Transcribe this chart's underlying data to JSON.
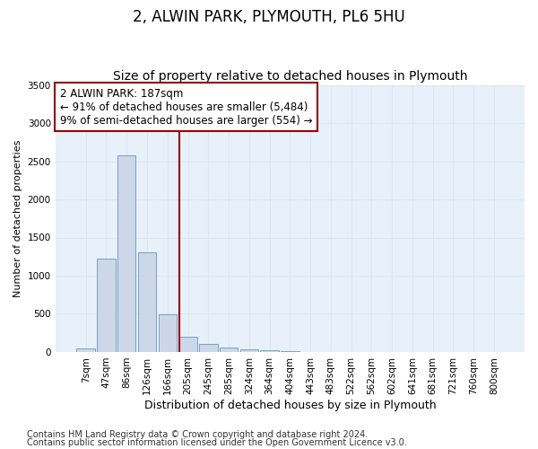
{
  "title1": "2, ALWIN PARK, PLYMOUTH, PL6 5HU",
  "title2": "Size of property relative to detached houses in Plymouth",
  "xlabel": "Distribution of detached houses by size in Plymouth",
  "ylabel": "Number of detached properties",
  "categories": [
    "7sqm",
    "47sqm",
    "86sqm",
    "126sqm",
    "166sqm",
    "205sqm",
    "245sqm",
    "285sqm",
    "324sqm",
    "364sqm",
    "404sqm",
    "443sqm",
    "483sqm",
    "522sqm",
    "562sqm",
    "602sqm",
    "641sqm",
    "681sqm",
    "721sqm",
    "760sqm",
    "800sqm"
  ],
  "values": [
    50,
    1220,
    2580,
    1300,
    490,
    195,
    110,
    55,
    35,
    18,
    10,
    5,
    3,
    2,
    1,
    1,
    0,
    0,
    0,
    0,
    0
  ],
  "bar_color": "#ccd8e8",
  "bar_edge_color": "#6a96bc",
  "vline_x": 4.58,
  "vline_color": "#990000",
  "annotation_line1": "2 ALWIN PARK: 187sqm",
  "annotation_line2": "← 91% of detached houses are smaller (5,484)",
  "annotation_line3": "9% of semi-detached houses are larger (554) →",
  "annotation_box_color": "#ffffff",
  "annotation_box_edge": "#990000",
  "ylim": [
    0,
    3500
  ],
  "yticks": [
    0,
    500,
    1000,
    1500,
    2000,
    2500,
    3000,
    3500
  ],
  "grid_color": "#dce8f0",
  "bg_color": "#e8f0fa",
  "footer1": "Contains HM Land Registry data © Crown copyright and database right 2024.",
  "footer2": "Contains public sector information licensed under the Open Government Licence v3.0.",
  "title1_fontsize": 12,
  "title2_fontsize": 10,
  "xlabel_fontsize": 9,
  "ylabel_fontsize": 8,
  "tick_fontsize": 7.5,
  "annot_fontsize": 8.5,
  "footer_fontsize": 7
}
